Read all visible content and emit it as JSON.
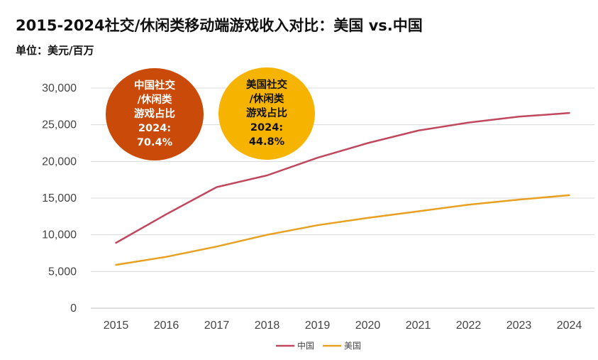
{
  "header": {
    "title": "2015-2024社交/休闲类移动端游戏收入对比：美国 vs.中国",
    "unit": "单位：美元/百万"
  },
  "bubbles": {
    "china": {
      "lines": [
        "中国社交",
        "/休闲类",
        "游戏占比",
        "2024:",
        "70.4%"
      ],
      "color": "#c94a09"
    },
    "usa": {
      "lines": [
        "美国社交",
        "/休闲类",
        "游戏占比",
        "2024:",
        "44.8%"
      ],
      "color": "#f6b400"
    }
  },
  "chart_data": {
    "type": "line",
    "x": [
      "2015",
      "2016",
      "2017",
      "2018",
      "2019",
      "2020",
      "2021",
      "2022",
      "2023",
      "2024"
    ],
    "ylim": [
      0,
      30000
    ],
    "yticks": [
      "0",
      "5,000",
      "10,000",
      "15,000",
      "20,000",
      "25,000",
      "30,000"
    ],
    "grid": true,
    "legend_position": "bottom",
    "series": [
      {
        "name": "中国",
        "color": "#c0475e",
        "values": [
          8900,
          12800,
          16500,
          18100,
          20500,
          22500,
          24200,
          25300,
          26100,
          26600
        ]
      },
      {
        "name": "美国",
        "color": "#e8a020",
        "values": [
          5900,
          7000,
          8400,
          10000,
          11300,
          12300,
          13200,
          14100,
          14800,
          15400
        ]
      }
    ]
  }
}
